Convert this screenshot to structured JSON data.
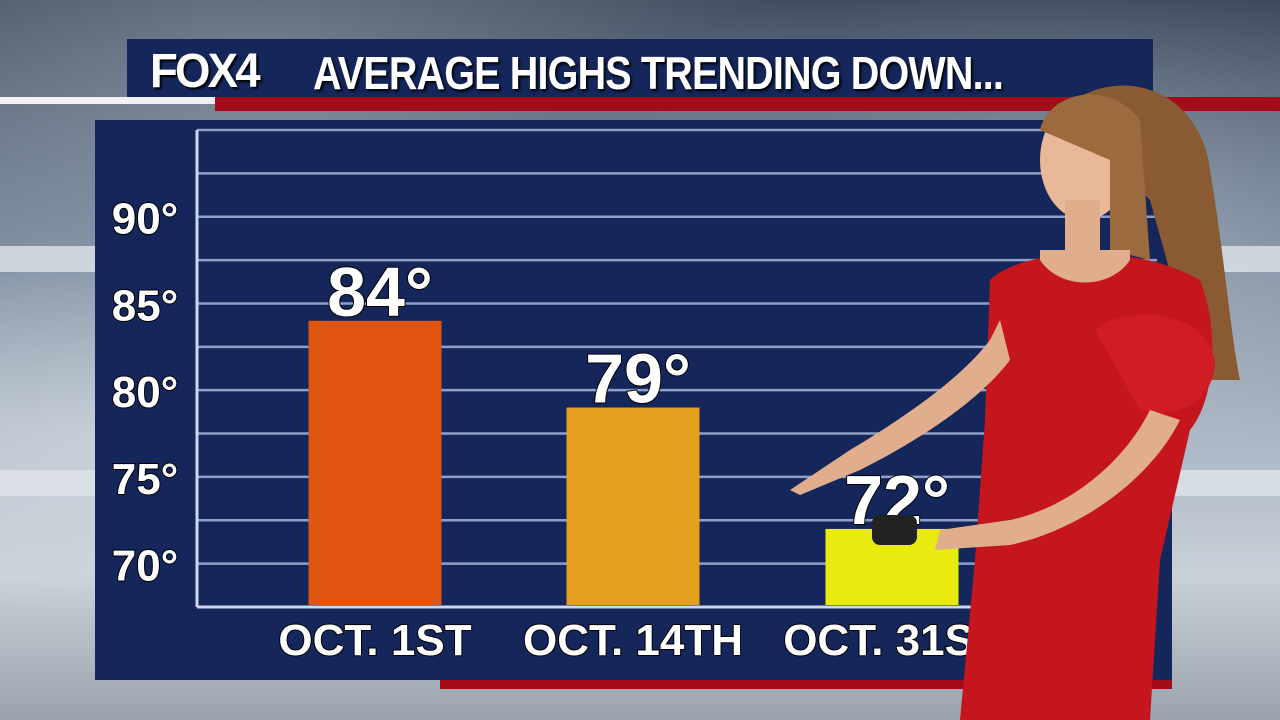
{
  "header": {
    "logo": "FOX4",
    "title": "AVERAGE HIGHS TRENDING DOWN..."
  },
  "colors": {
    "panel": "#14265a",
    "accent_red": "#a50c1a",
    "grid": "#8fa0c8"
  },
  "chart_data": {
    "type": "bar",
    "title": "AVERAGE HIGHS TRENDING DOWN...",
    "categories": [
      "Oct. 1st",
      "Oct. 14th",
      "Oct. 31st"
    ],
    "values": [
      84,
      79,
      72
    ],
    "value_labels": [
      "84°",
      "79°",
      "72°"
    ],
    "bar_colors": [
      "#e05510",
      "#e6a020",
      "#e8ea10"
    ],
    "yticks": [
      70,
      75,
      80,
      85,
      90
    ],
    "ytick_labels": [
      "70°",
      "75°",
      "80°",
      "85°",
      "90°"
    ],
    "ylim": [
      67.5,
      95
    ],
    "grid": true,
    "xlabel": "",
    "ylabel": ""
  }
}
